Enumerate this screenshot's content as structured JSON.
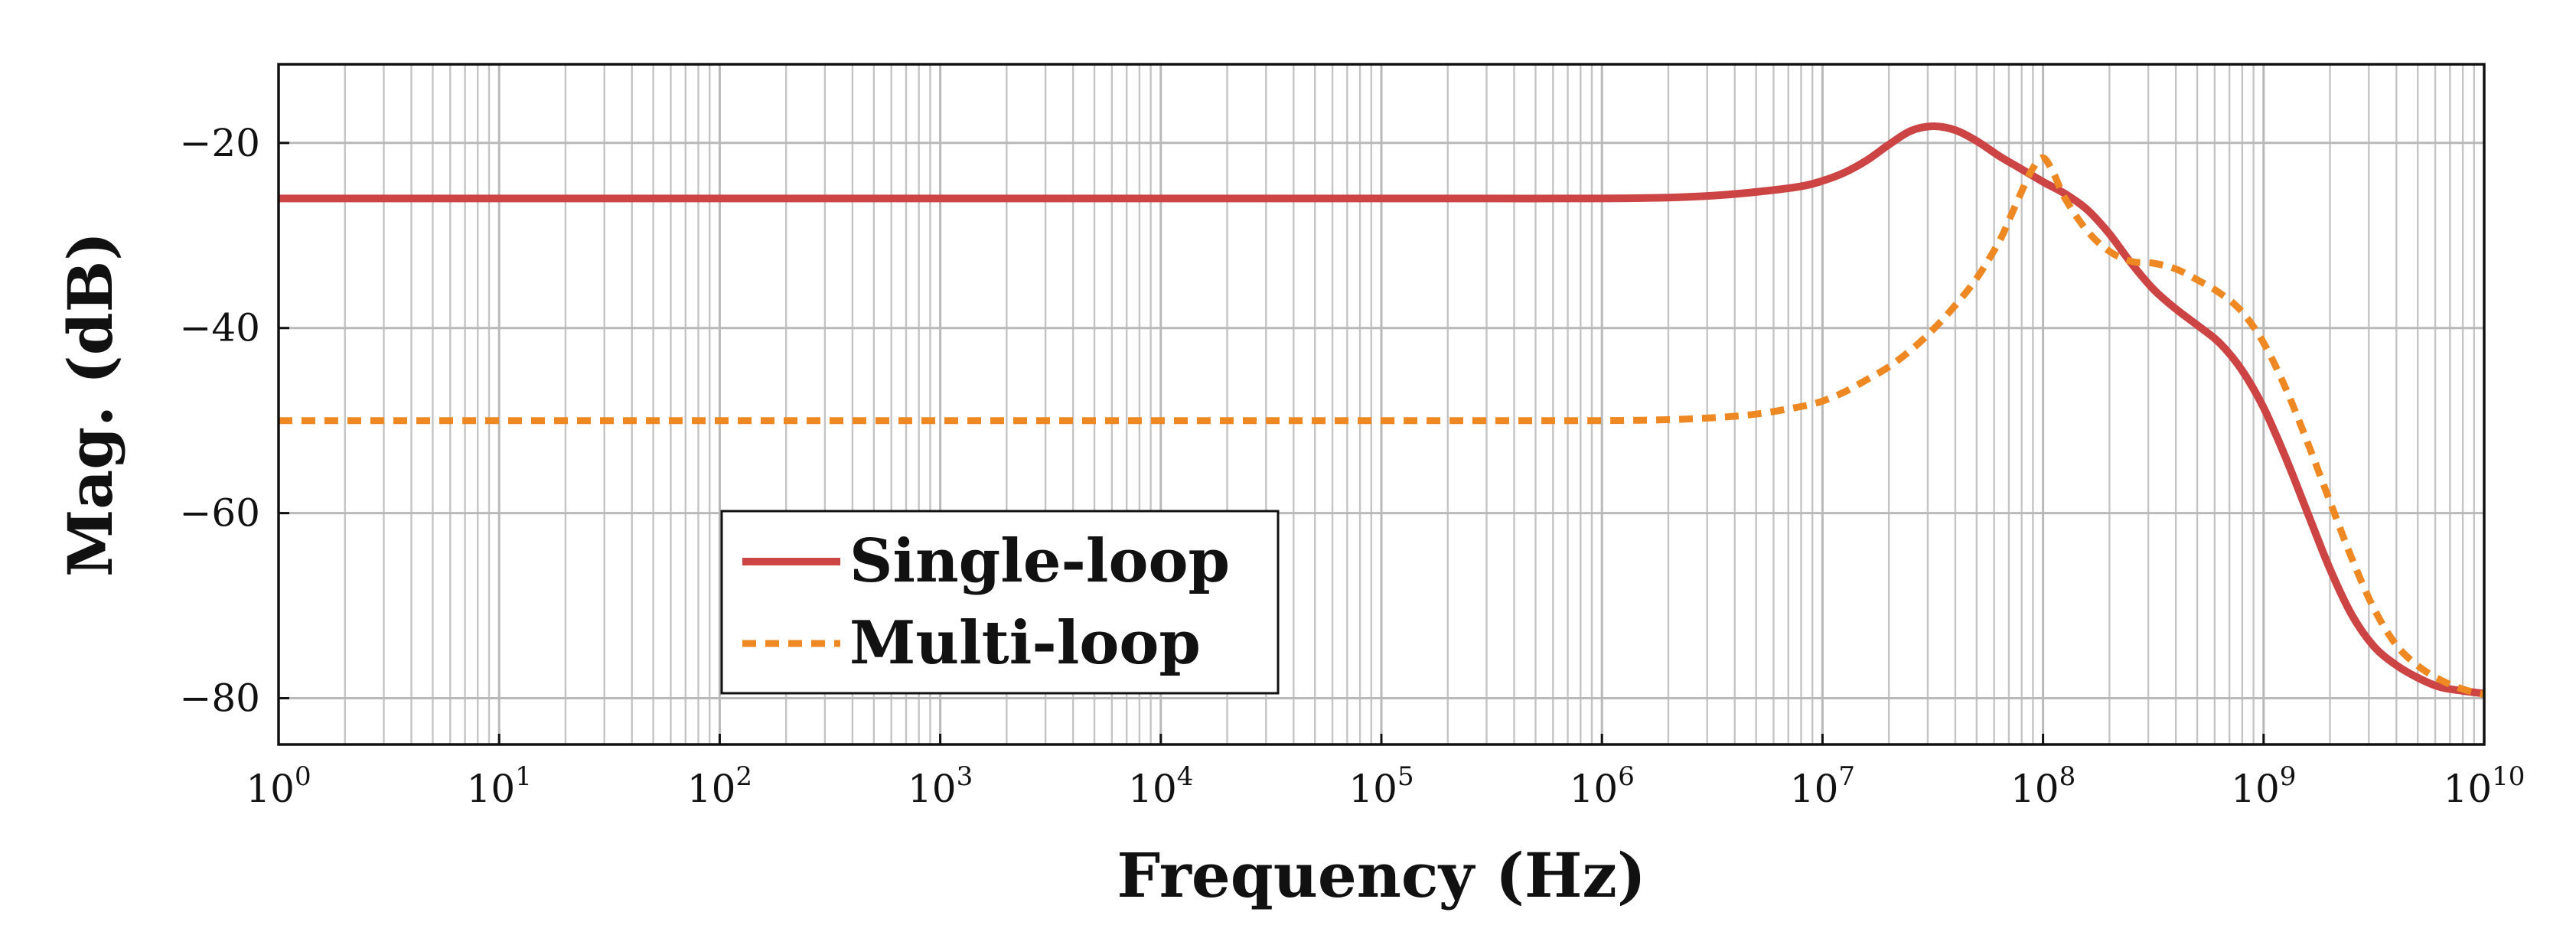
{
  "chart_data": {
    "type": "line",
    "xscale": "log",
    "xlabel": "Frequency (Hz)",
    "ylabel": "Mag. (dB)",
    "xlim": [
      1,
      10000000000
    ],
    "ylim": [
      -85,
      -11.5
    ],
    "grid": true,
    "legend_position": "lower-left",
    "x_ticks": [
      {
        "base": "10",
        "exp": "0"
      },
      {
        "base": "10",
        "exp": "1"
      },
      {
        "base": "10",
        "exp": "2"
      },
      {
        "base": "10",
        "exp": "3"
      },
      {
        "base": "10",
        "exp": "4"
      },
      {
        "base": "10",
        "exp": "5"
      },
      {
        "base": "10",
        "exp": "6"
      },
      {
        "base": "10",
        "exp": "7"
      },
      {
        "base": "10",
        "exp": "8"
      },
      {
        "base": "10",
        "exp": "9"
      },
      {
        "base": "10",
        "exp": "10"
      }
    ],
    "y_ticks": [
      {
        "value": -20,
        "label": "−20"
      },
      {
        "value": -40,
        "label": "−40"
      },
      {
        "value": -60,
        "label": "−60"
      },
      {
        "value": -80,
        "label": "−80"
      }
    ],
    "series": [
      {
        "name": "Single-loop",
        "color": "#cc4444",
        "style": "solid",
        "log10_x": [
          0,
          1,
          2,
          3,
          4,
          5,
          5.5,
          6,
          6.3,
          6.5,
          6.7,
          6.9,
          7.0,
          7.1,
          7.2,
          7.3,
          7.4,
          7.5,
          7.6,
          7.7,
          7.8,
          7.9,
          8.0,
          8.1,
          8.2,
          8.3,
          8.4,
          8.5,
          8.6,
          8.7,
          8.8,
          8.9,
          9.0,
          9.1,
          9.2,
          9.3,
          9.4,
          9.5,
          9.6,
          9.7,
          9.8,
          9.9,
          10.0
        ],
        "y": [
          -26,
          -26,
          -26,
          -26,
          -26,
          -26,
          -26,
          -26,
          -25.9,
          -25.7,
          -25.3,
          -24.7,
          -24.1,
          -23.2,
          -21.9,
          -20.2,
          -18.7,
          -18.2,
          -18.6,
          -19.8,
          -21.4,
          -22.8,
          -24.2,
          -25.5,
          -27.2,
          -29.8,
          -33.0,
          -35.8,
          -37.9,
          -39.7,
          -41.6,
          -44.5,
          -48.6,
          -54.0,
          -60.0,
          -66.0,
          -71.0,
          -74.4,
          -76.4,
          -77.8,
          -78.8,
          -79.2,
          -79.5
        ]
      },
      {
        "name": "Multi-loop",
        "color": "#ee8822",
        "style": "dashed",
        "log10_x": [
          0,
          1,
          2,
          3,
          4,
          5,
          5.5,
          6,
          6.3,
          6.5,
          6.7,
          6.9,
          7.0,
          7.1,
          7.2,
          7.3,
          7.4,
          7.5,
          7.6,
          7.7,
          7.8,
          7.85,
          7.9,
          7.95,
          8.0,
          8.05,
          8.1,
          8.2,
          8.3,
          8.4,
          8.5,
          8.6,
          8.7,
          8.8,
          8.9,
          9.0,
          9.1,
          9.2,
          9.3,
          9.4,
          9.5,
          9.6,
          9.7,
          9.8,
          9.9,
          10.0
        ],
        "y": [
          -50,
          -50,
          -50,
          -50,
          -50,
          -50,
          -50,
          -50,
          -49.9,
          -49.7,
          -49.3,
          -48.5,
          -47.9,
          -46.9,
          -45.6,
          -44.2,
          -42.4,
          -40.2,
          -37.6,
          -34.6,
          -30.7,
          -28.1,
          -25.4,
          -22.9,
          -21.6,
          -23.4,
          -26.0,
          -29.5,
          -31.7,
          -32.8,
          -33.0,
          -33.6,
          -34.8,
          -36.2,
          -38.2,
          -41.6,
          -46.5,
          -52.4,
          -58.7,
          -64.9,
          -70.3,
          -74.2,
          -76.5,
          -78.0,
          -79.0,
          -79.6
        ]
      }
    ]
  }
}
